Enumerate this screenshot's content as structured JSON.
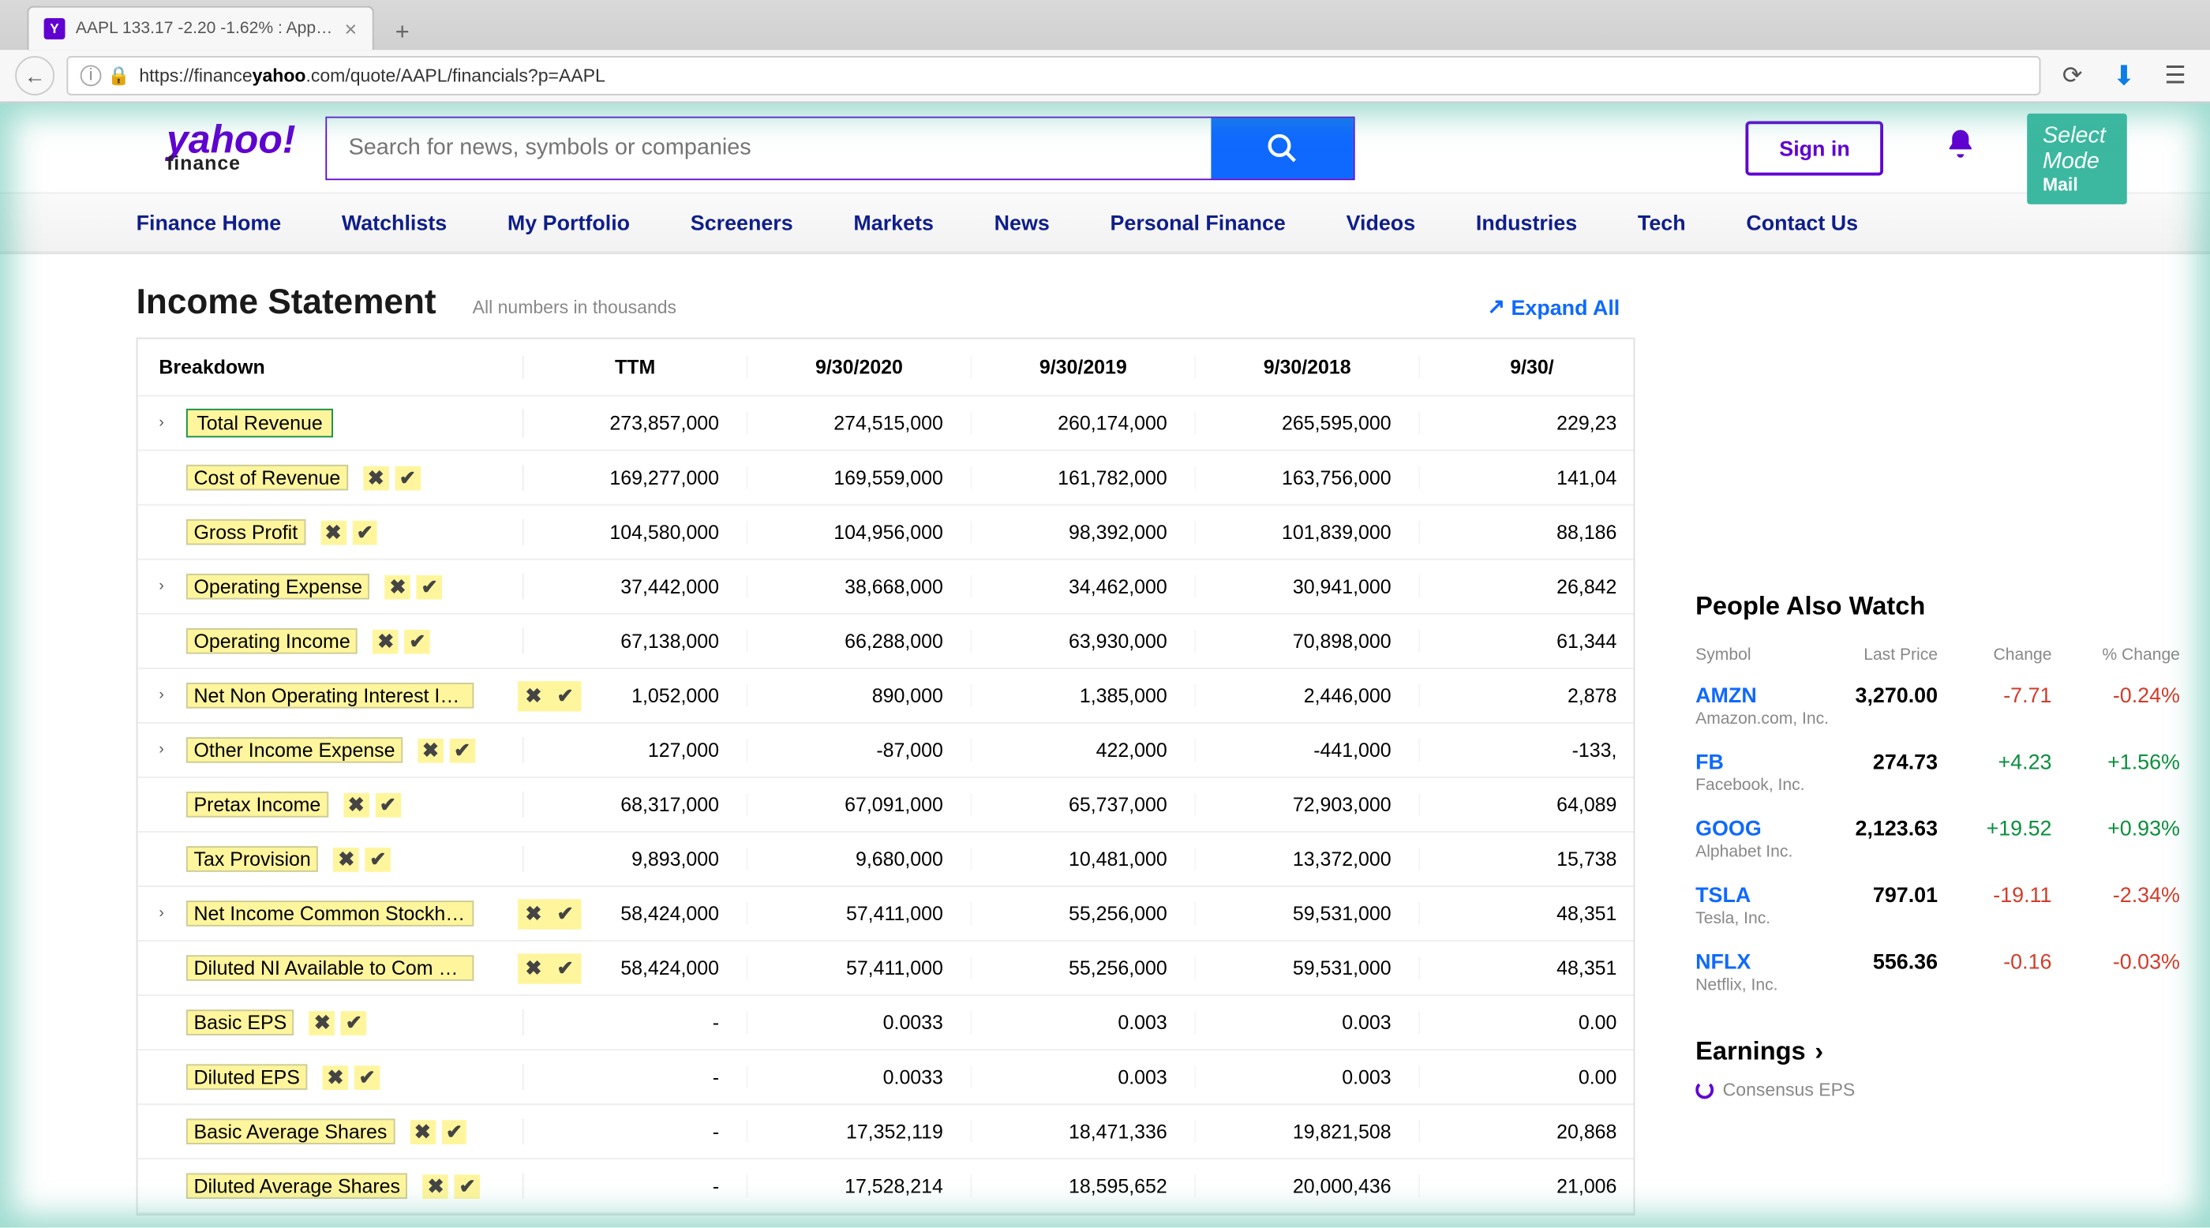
{
  "browser": {
    "tab_favicon_letter": "Y",
    "tab_title": "AAPL 133.17 -2.20 -1.62% : App…",
    "url_prefix": "https://finance",
    "url_bold": "yahoo",
    "url_suffix": ".com/quote/AAPL/financials?p=AAPL"
  },
  "header": {
    "logo_main": "yahoo!",
    "logo_sub": "finance",
    "search_placeholder": "Search for news, symbols or companies",
    "signin": "Sign in",
    "select_mode": "Select Mode",
    "mail_label": "Mail"
  },
  "nav": [
    "Finance Home",
    "Watchlists",
    "My Portfolio",
    "Screeners",
    "Markets",
    "News",
    "Personal Finance",
    "Videos",
    "Industries",
    "Tech",
    "Contact Us"
  ],
  "page": {
    "title": "Income Statement",
    "subtitle": "All numbers in thousands",
    "expand_all": "Expand All"
  },
  "table": {
    "head": [
      "Breakdown",
      "TTM",
      "9/30/2020",
      "9/30/2019",
      "9/30/2018",
      "9/30/"
    ],
    "rows": [
      {
        "expand": true,
        "label": "Total Revenue",
        "green": true,
        "ctrls": false,
        "vals": [
          "273,857,000",
          "274,515,000",
          "260,174,000",
          "265,595,000",
          "229,23"
        ]
      },
      {
        "expand": false,
        "label": "Cost of Revenue",
        "ctrls": true,
        "vals": [
          "169,277,000",
          "169,559,000",
          "161,782,000",
          "163,756,000",
          "141,04"
        ]
      },
      {
        "expand": false,
        "label": "Gross Profit",
        "ctrls": true,
        "vals": [
          "104,580,000",
          "104,956,000",
          "98,392,000",
          "101,839,000",
          "88,186"
        ]
      },
      {
        "expand": true,
        "label": "Operating Expense",
        "ctrls": true,
        "vals": [
          "37,442,000",
          "38,668,000",
          "34,462,000",
          "30,941,000",
          "26,842"
        ]
      },
      {
        "expand": false,
        "label": "Operating Income",
        "ctrls": true,
        "vals": [
          "67,138,000",
          "66,288,000",
          "63,930,000",
          "70,898,000",
          "61,344"
        ]
      },
      {
        "expand": true,
        "label": "Net Non Operating Interest Inc…",
        "ctrls": true,
        "over": true,
        "vals": [
          "1,052,000",
          "890,000",
          "1,385,000",
          "2,446,000",
          "2,878"
        ]
      },
      {
        "expand": true,
        "label": "Other Income Expense",
        "ctrls": true,
        "vals": [
          "127,000",
          "-87,000",
          "422,000",
          "-441,000",
          "-133,"
        ]
      },
      {
        "expand": false,
        "label": "Pretax Income",
        "ctrls": true,
        "vals": [
          "68,317,000",
          "67,091,000",
          "65,737,000",
          "72,903,000",
          "64,089"
        ]
      },
      {
        "expand": false,
        "label": "Tax Provision",
        "ctrls": true,
        "vals": [
          "9,893,000",
          "9,680,000",
          "10,481,000",
          "13,372,000",
          "15,738"
        ]
      },
      {
        "expand": true,
        "label": "Net Income Common Stockhold…",
        "ctrls": true,
        "over": true,
        "vals": [
          "58,424,000",
          "57,411,000",
          "55,256,000",
          "59,531,000",
          "48,351"
        ]
      },
      {
        "expand": false,
        "label": "Diluted NI Available to Com Stock…",
        "ctrls": true,
        "over": true,
        "vals": [
          "58,424,000",
          "57,411,000",
          "55,256,000",
          "59,531,000",
          "48,351"
        ]
      },
      {
        "expand": false,
        "label": "Basic EPS",
        "ctrls": true,
        "vals": [
          "-",
          "0.0033",
          "0.003",
          "0.003",
          "0.00"
        ]
      },
      {
        "expand": false,
        "label": "Diluted EPS",
        "ctrls": true,
        "vals": [
          "-",
          "0.0033",
          "0.003",
          "0.003",
          "0.00"
        ]
      },
      {
        "expand": false,
        "label": "Basic Average Shares",
        "ctrls": true,
        "vals": [
          "-",
          "17,352,119",
          "18,471,336",
          "19,821,508",
          "20,868"
        ]
      },
      {
        "expand": false,
        "label": "Diluted Average Shares",
        "ctrls": true,
        "vals": [
          "-",
          "17,528,214",
          "18,595,652",
          "20,000,436",
          "21,006"
        ]
      }
    ]
  },
  "sidebar": {
    "paw_title": "People Also Watch",
    "paw_head": [
      "Symbol",
      "Last Price",
      "Change",
      "% Change"
    ],
    "paw_rows": [
      {
        "sym": "AMZN",
        "name": "Amazon.com, Inc.",
        "price": "3,270.00",
        "chg": "-7.71",
        "pct": "-0.24%",
        "dir": "neg"
      },
      {
        "sym": "FB",
        "name": "Facebook, Inc.",
        "price": "274.73",
        "chg": "+4.23",
        "pct": "+1.56%",
        "dir": "pos"
      },
      {
        "sym": "GOOG",
        "name": "Alphabet Inc.",
        "price": "2,123.63",
        "chg": "+19.52",
        "pct": "+0.93%",
        "dir": "pos"
      },
      {
        "sym": "TSLA",
        "name": "Tesla, Inc.",
        "price": "797.01",
        "chg": "-19.11",
        "pct": "-2.34%",
        "dir": "neg"
      },
      {
        "sym": "NFLX",
        "name": "Netflix, Inc.",
        "price": "556.36",
        "chg": "-0.16",
        "pct": "-0.03%",
        "dir": "neg"
      }
    ],
    "earnings": "Earnings",
    "consensus": "Consensus EPS"
  }
}
